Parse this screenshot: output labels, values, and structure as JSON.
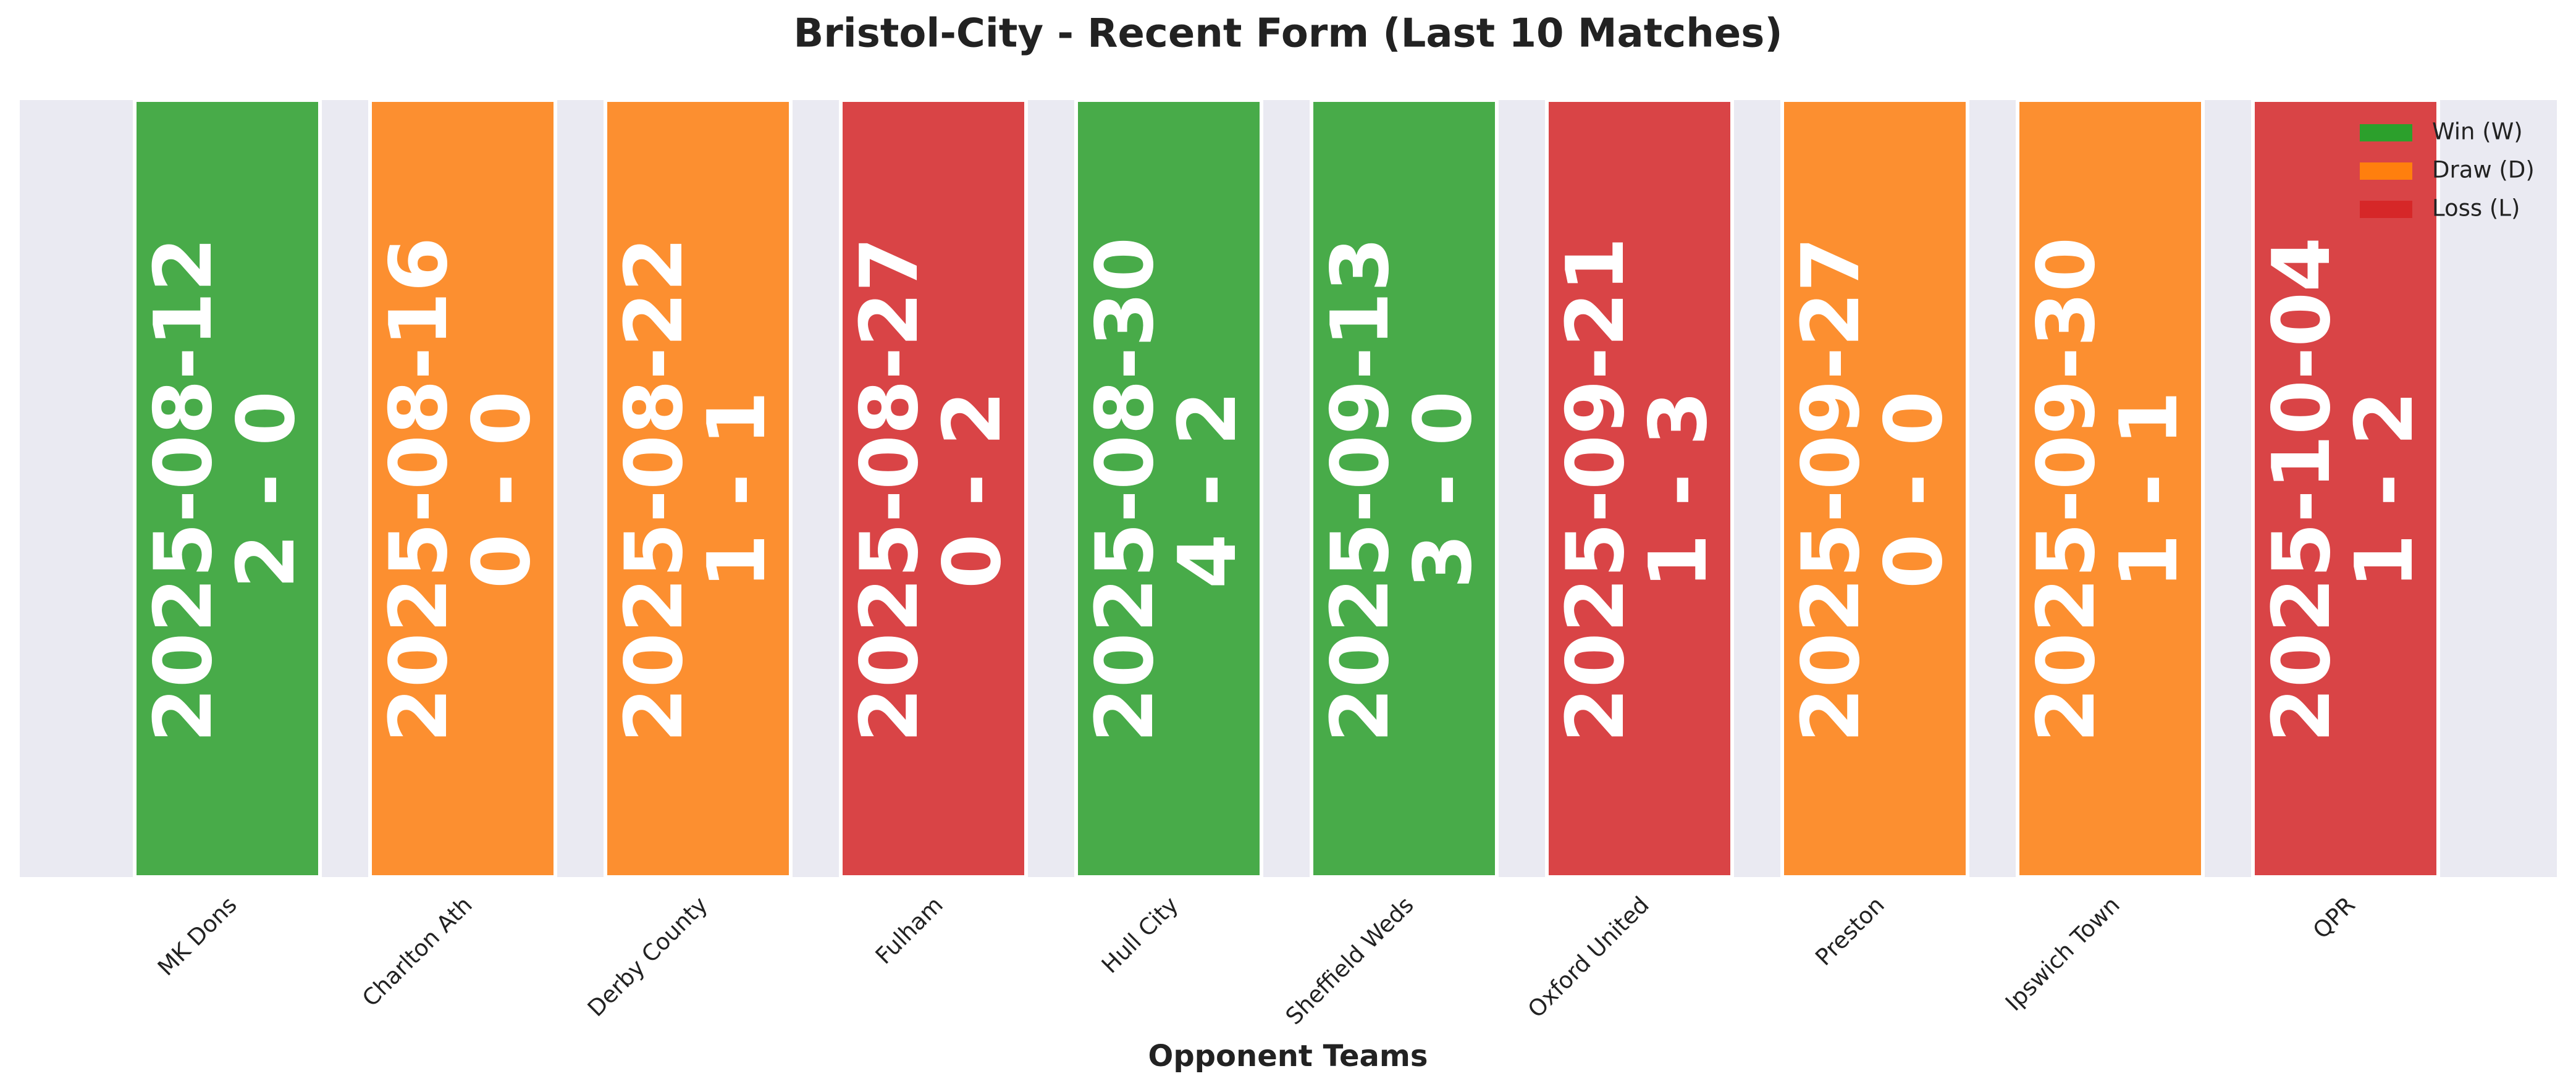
{
  "chart_data": {
    "type": "bar",
    "title": "Bristol-City - Recent Form (Last 10 Matches)",
    "xlabel": "Opponent Teams",
    "categories": [
      "MK Dons",
      "Charlton Ath",
      "Derby County",
      "Fulham",
      "Hull City",
      "Sheffield Weds",
      "Oxford United",
      "Preston",
      "Ipswich Town",
      "QPR"
    ],
    "dates": [
      "2025-08-12",
      "2025-08-16",
      "2025-08-22",
      "2025-08-27",
      "2025-08-30",
      "2025-09-13",
      "2025-09-21",
      "2025-09-27",
      "2025-09-30",
      "2025-10-04"
    ],
    "scores": [
      "2 - 0",
      "0 - 0",
      "1 - 1",
      "0 - 2",
      "4 - 2",
      "3 - 0",
      "1 - 3",
      "0 - 0",
      "1 - 1",
      "1 - 2"
    ],
    "colors": [
      "#2ca02c",
      "#ff7f0e",
      "#ff7f0e",
      "#d62728",
      "#2ca02c",
      "#2ca02c",
      "#d62728",
      "#ff7f0e",
      "#ff7f0e",
      "#d62728"
    ],
    "legend": [
      {
        "name": "Win (W)",
        "color": "#2ca02c"
      },
      {
        "name": "Draw (D)",
        "color": "#ff7f0e"
      },
      {
        "name": "Loss (L)",
        "color": "#d62728"
      }
    ],
    "legend_loc": "upper right"
  }
}
